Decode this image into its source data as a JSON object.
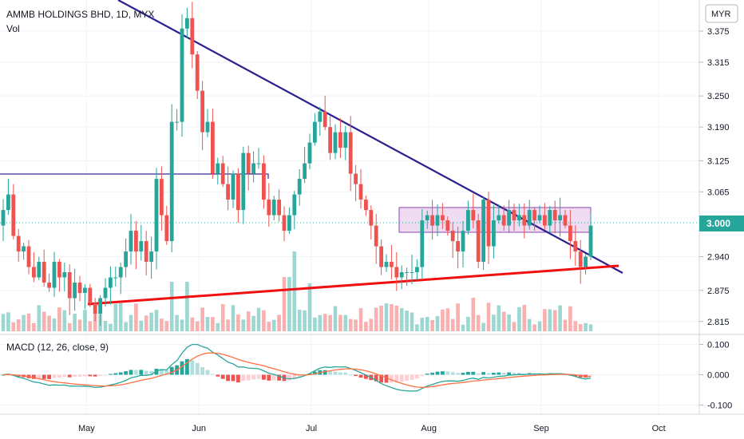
{
  "header": {
    "title": "AMMB HOLDINGS BHD, 1D, MYX",
    "volume_label": "Vol",
    "currency_button": "MYR"
  },
  "macd": {
    "label": "MACD (12, 26, close, 9)"
  },
  "colors": {
    "up": "#26a69a",
    "down": "#ef5350",
    "trendline_down": "#2a1f8f",
    "trendline_up": "#f01010",
    "rect_fill": "#e1bee7",
    "rect_stroke": "#8e44ad",
    "resistance": "#3b2a9a",
    "price_line": "#26a69a",
    "macd_line": "#26a69a",
    "signal_line": "#ff7043"
  },
  "chart_data": [
    {
      "type": "candlestick",
      "title": "AMMB HOLDINGS BHD, 1D, MYX",
      "ylim": [
        2.79,
        3.435
      ],
      "y_ticks": [
        "3.375",
        "3.315",
        "3.250",
        "3.190",
        "3.125",
        "3.065",
        "2.940",
        "2.875",
        "2.815"
      ],
      "x_ticks": [
        "May",
        "Jun",
        "Jul",
        "Aug",
        "Sep",
        "Oct"
      ],
      "last_price": "3.000",
      "closes": [
        3.03,
        3.06,
        2.98,
        2.95,
        2.96,
        2.92,
        2.9,
        2.93,
        2.89,
        2.88,
        2.93,
        2.9,
        2.91,
        2.86,
        2.89,
        2.87,
        2.88,
        2.85,
        2.83,
        2.86,
        2.88,
        2.9,
        2.9,
        2.92,
        2.95,
        2.99,
        2.95,
        2.97,
        2.93,
        2.95,
        3.09,
        3.02,
        2.97,
        3.2,
        3.2,
        3.38,
        3.4,
        3.33,
        3.26,
        3.18,
        3.2,
        3.1,
        3.12,
        3.08,
        3.05,
        3.1,
        3.03,
        3.14,
        3.1,
        3.12,
        3.12,
        3.05,
        3.02,
        3.05,
        3.02,
        2.99,
        3.02,
        3.06,
        3.09,
        3.12,
        3.16,
        3.2,
        3.22,
        3.19,
        3.14,
        3.18,
        3.15,
        3.18,
        3.1,
        3.08,
        3.05,
        3.03,
        3.0,
        2.96,
        2.92,
        2.93,
        2.92,
        2.9,
        2.91,
        2.91,
        2.91,
        2.92,
        3.01,
        3.02,
        3.0,
        3.02,
        3.01,
        2.99,
        2.97,
        2.95,
        2.99,
        3.03,
        3.01,
        2.93,
        3.05,
        2.96,
        3.01,
        3.02,
        3.0,
        3.03,
        3.01,
        3.02,
        3.0,
        3.03,
        3.01,
        3.02,
        3.0,
        3.03,
        3.01,
        3.02,
        3.0,
        2.97,
        2.95,
        2.92,
        2.94,
        3.0
      ]
    },
    {
      "type": "line",
      "name": "MACD (12, 26, close, 9)",
      "ylim": [
        -0.13,
        0.13
      ],
      "y_ticks": [
        "0.100",
        "0.000",
        "-0.100"
      ]
    }
  ]
}
